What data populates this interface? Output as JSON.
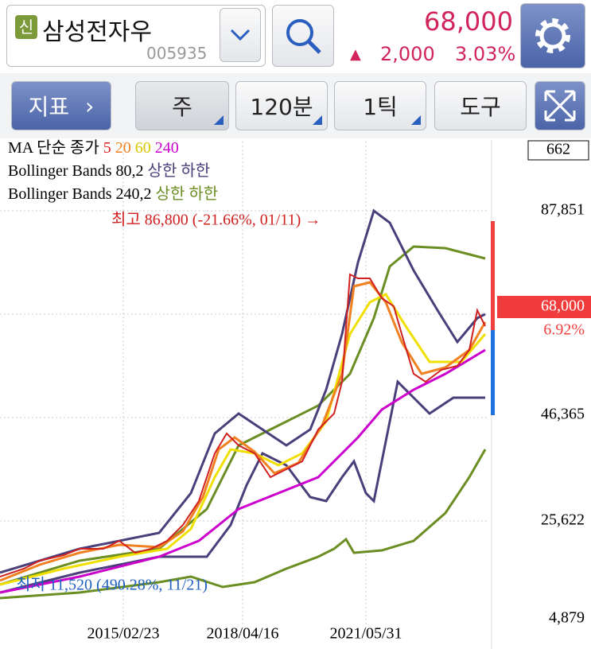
{
  "header": {
    "badge": "신",
    "name": "삼성전자우",
    "code": "005935",
    "price": "68,000",
    "arrow": "▲",
    "change": "2,000",
    "rate": "3.03%"
  },
  "toolbar": {
    "indicator": "지표",
    "period": "주",
    "interval": "120분",
    "tick": "1틱",
    "tools": "도구"
  },
  "chart": {
    "volume_box": "662",
    "legend": {
      "ma_label": "MA 단순 종가",
      "ma_periods": [
        "5",
        "20",
        "60",
        "240"
      ],
      "bb80": "Bollinger Bands 80,2",
      "bb80_upper": "상한",
      "bb80_lower": "하한",
      "bb240": "Bollinger Bands 240,2",
      "bb240_upper": "상한",
      "bb240_lower": "하한"
    },
    "high_note": "최고 86,800 (-21.66%, 01/11) →",
    "low_note": "최저 11,520 (490.28%, 11/21)",
    "price_labels": [
      "87,851",
      "46,365",
      "25,622",
      "4,879"
    ],
    "current_price": "68,000",
    "current_rate": "6.92%",
    "dates": [
      "2015/02/23",
      "2018/04/16",
      "2021/05/31"
    ]
  }
}
